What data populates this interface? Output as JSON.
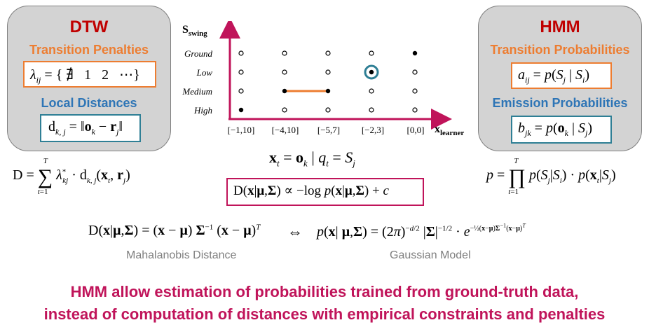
{
  "dtw": {
    "title": "DTW",
    "penalties_title": "Transition Penalties",
    "penalties_formula": "λij = {∄   1   2   ⋯}",
    "distances_title": "Local Distances",
    "distances_formula": "dk,j = ‖ok − rj‖",
    "total_formula": "D = Σ λ*kj · dk,j(xt, rj)"
  },
  "hmm": {
    "title": "HMM",
    "transition_title": "Transition Probabilities",
    "transition_formula": "aij = p(Sj | Si)",
    "emission_title": "Emission Probabilities",
    "emission_formula": "bjk = p(ok | Sj)",
    "total_formula": "p = Π p(Sj | Si) · p(xt | Sj)"
  },
  "grid": {
    "y_axis_label": "Sswing",
    "x_axis_label": "xlearner",
    "y_labels": [
      "Ground",
      "Low",
      "Medium",
      "High"
    ],
    "x_labels": [
      "[−1,10]",
      "[−4,10]",
      "[−5,7]",
      "[−2,3]",
      "[0,0]"
    ],
    "filled_points": [
      [
        0,
        3
      ],
      [
        4,
        0
      ],
      [
        1,
        2
      ],
      [
        2,
        2
      ],
      [
        3,
        1
      ]
    ],
    "circled_point": [
      3,
      1
    ],
    "highlight_segment": [
      [
        1,
        2
      ],
      [
        2,
        2
      ]
    ],
    "colors": {
      "axis": "#c0145a",
      "segment": "#ed7d31",
      "circle": "#2f7f95"
    }
  },
  "observation_formula": "xt = ok | qt = Sj",
  "gaussian_log_formula": "D(x | μ, Σ) ∝ −log p(x | μ, Σ) + c",
  "mahalanobis": {
    "formula": "D(x | μ, Σ) = (x − μ) Σ⁻¹ (x − μ)ᵀ",
    "label": "Mahalanobis Distance"
  },
  "equivalence_symbol": "⇔",
  "gaussian": {
    "formula": "p(x | μ, Σ) = (2π)^(−d/2) |Σ|^(−1/2) · e^(−½(x−μ)Σ⁻¹(x−μ)ᵀ)",
    "label": "Gaussian Model"
  },
  "conclusion": {
    "line1": "HMM allow estimation of probabilities trained from ground-truth data,",
    "line2": "instead of computation of distances with empirical constraints and penalties"
  }
}
